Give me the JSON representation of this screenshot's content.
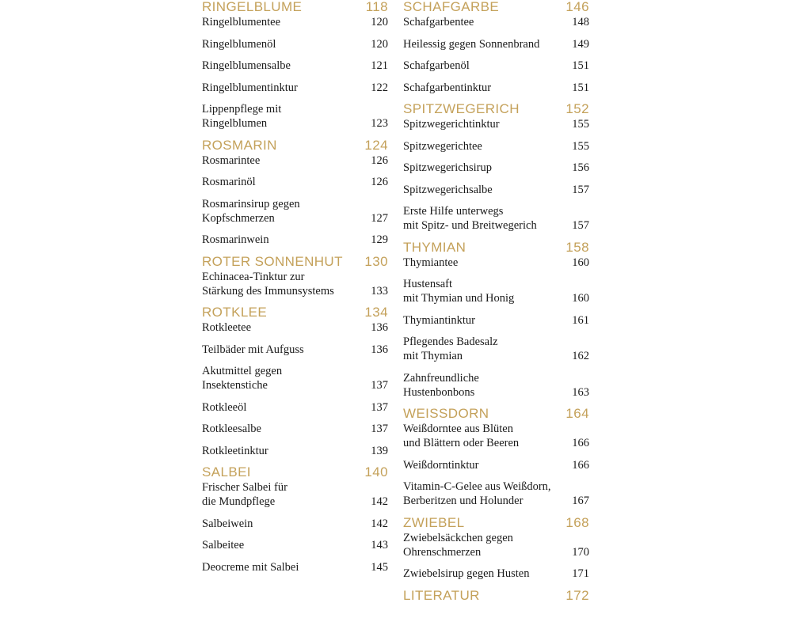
{
  "columns": [
    {
      "sections": [
        {
          "title": "RINGELBLUME",
          "page": 118,
          "entries": [
            {
              "lines": [
                "Ringelblumentee"
              ],
              "page": 120
            },
            {
              "lines": [
                "Ringelblumenöl"
              ],
              "page": 120
            },
            {
              "lines": [
                "Ringelblumensalbe"
              ],
              "page": 121
            },
            {
              "lines": [
                "Ringelblumentinktur"
              ],
              "page": 122
            },
            {
              "lines": [
                "Lippenpflege mit",
                "Ringelblumen"
              ],
              "page": 123
            }
          ]
        },
        {
          "title": "ROSMARIN",
          "page": 124,
          "entries": [
            {
              "lines": [
                "Rosmarintee"
              ],
              "page": 126
            },
            {
              "lines": [
                "Rosmarinöl"
              ],
              "page": 126
            },
            {
              "lines": [
                "Rosmarinsirup gegen",
                "Kopfschmerzen"
              ],
              "page": 127
            },
            {
              "lines": [
                "Rosmarinwein"
              ],
              "page": 129
            }
          ]
        },
        {
          "title": "ROTER SONNENHUT",
          "page": 130,
          "entries": [
            {
              "lines": [
                "Echinacea-Tinktur zur",
                "Stärkung des Immunsystems"
              ],
              "page": 133
            }
          ]
        },
        {
          "title": "ROTKLEE",
          "page": 134,
          "entries": [
            {
              "lines": [
                "Rotkleetee"
              ],
              "page": 136
            },
            {
              "lines": [
                "Teilbäder mit Aufguss"
              ],
              "page": 136
            },
            {
              "lines": [
                "Akutmittel gegen",
                "Insektenstiche"
              ],
              "page": 137
            },
            {
              "lines": [
                "Rotkleeöl"
              ],
              "page": 137
            },
            {
              "lines": [
                "Rotkleesalbe"
              ],
              "page": 137
            },
            {
              "lines": [
                "Rotkleetinktur"
              ],
              "page": 139
            }
          ]
        },
        {
          "title": "SALBEI",
          "page": 140,
          "entries": [
            {
              "lines": [
                "Frischer Salbei für",
                "die Mundpflege"
              ],
              "page": 142
            },
            {
              "lines": [
                "Salbeiwein"
              ],
              "page": 142
            },
            {
              "lines": [
                "Salbeitee"
              ],
              "page": 143
            },
            {
              "lines": [
                "Deocreme mit Salbei"
              ],
              "page": 145
            }
          ]
        }
      ]
    },
    {
      "sections": [
        {
          "title": "SCHAFGARBE",
          "page": 146,
          "entries": [
            {
              "lines": [
                "Schafgarbentee"
              ],
              "page": 148
            },
            {
              "lines": [
                "Heilessig gegen Sonnenbrand"
              ],
              "page": 149
            },
            {
              "lines": [
                "Schafgarbenöl"
              ],
              "page": 151
            },
            {
              "lines": [
                "Schafgarbentinktur"
              ],
              "page": 151
            }
          ]
        },
        {
          "title": "SPITZWEGERICH",
          "page": 152,
          "entries": [
            {
              "lines": [
                "Spitzwegerichtinktur"
              ],
              "page": 155
            },
            {
              "lines": [
                "Spitzwegerichtee"
              ],
              "page": 155
            },
            {
              "lines": [
                "Spitzwegerichsirup"
              ],
              "page": 156
            },
            {
              "lines": [
                "Spitzwegerichsalbe"
              ],
              "page": 157
            },
            {
              "lines": [
                "Erste Hilfe unterwegs",
                "mit Spitz- und Breitwegerich"
              ],
              "page": 157
            }
          ]
        },
        {
          "title": "THYMIAN",
          "page": 158,
          "entries": [
            {
              "lines": [
                "Thymiantee"
              ],
              "page": 160
            },
            {
              "lines": [
                "Hustensaft",
                "mit Thymian und Honig"
              ],
              "page": 160
            },
            {
              "lines": [
                "Thymiantinktur"
              ],
              "page": 161
            },
            {
              "lines": [
                "Pflegendes Badesalz",
                "mit Thymian"
              ],
              "page": 162
            },
            {
              "lines": [
                "Zahnfreundliche",
                "Hustenbonbons"
              ],
              "page": 163
            }
          ]
        },
        {
          "title": "WEISSDORN",
          "page": 164,
          "entries": [
            {
              "lines": [
                "Weißdorntee aus Blüten",
                "und Blättern oder Beeren"
              ],
              "page": 166
            },
            {
              "lines": [
                "Weißdorntinktur"
              ],
              "page": 166
            },
            {
              "lines": [
                "Vitamin-C-Gelee aus Weißdorn,",
                "Berberitzen und Holunder"
              ],
              "page": 167
            }
          ]
        },
        {
          "title": "ZWIEBEL",
          "page": 168,
          "entries": [
            {
              "lines": [
                "Zwiebelsäckchen gegen",
                "Ohrenschmerzen"
              ],
              "page": 170
            },
            {
              "lines": [
                "Zwiebelsirup gegen Husten"
              ],
              "page": 171
            }
          ]
        },
        {
          "title": "LITERATUR",
          "page": 172
        }
      ]
    }
  ]
}
